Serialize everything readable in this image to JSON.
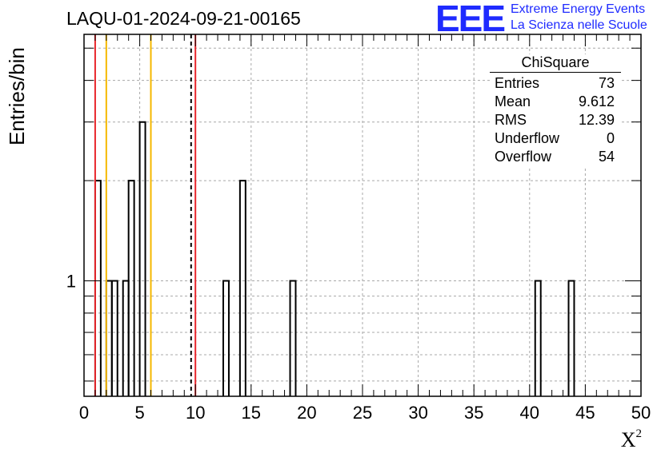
{
  "chart_data": {
    "type": "histogram",
    "title": "LAQU-01-2024-09-21-00165",
    "xlabel": "X",
    "xlabel_sup": "2",
    "ylabel": "Entries/bin",
    "xlim": [
      0,
      50
    ],
    "ylim": [
      0.45,
      5.5
    ],
    "y_scale": "log",
    "grid": true,
    "bin_width": 0.5,
    "x_ticks": [
      "0",
      "5",
      "10",
      "15",
      "20",
      "25",
      "30",
      "35",
      "40",
      "45",
      "50"
    ],
    "y_tick_label": "1",
    "bins": [
      {
        "x": 1.0,
        "value": 2
      },
      {
        "x": 2.0,
        "value": 1
      },
      {
        "x": 2.5,
        "value": 1
      },
      {
        "x": 3.5,
        "value": 1
      },
      {
        "x": 4.0,
        "value": 2
      },
      {
        "x": 5.0,
        "value": 3
      },
      {
        "x": 12.5,
        "value": 1
      },
      {
        "x": 14.0,
        "value": 2
      },
      {
        "x": 18.5,
        "value": 1
      },
      {
        "x": 40.5,
        "value": 1
      },
      {
        "x": 43.5,
        "value": 1
      }
    ],
    "reference_lines": [
      {
        "x": 1.0,
        "color": "#e8262c",
        "style": "solid"
      },
      {
        "x": 2.0,
        "color": "#f5b800",
        "style": "solid"
      },
      {
        "x": 6.0,
        "color": "#f5b800",
        "style": "solid"
      },
      {
        "x": 9.612,
        "color": "#000000",
        "style": "dashed"
      },
      {
        "x": 10.0,
        "color": "#e8262c",
        "style": "solid"
      }
    ],
    "stats_box": {
      "title": "ChiSquare",
      "rows": [
        {
          "label": "Entries",
          "value": "73"
        },
        {
          "label": "Mean",
          "value": "9.612"
        },
        {
          "label": "RMS",
          "value": "12.39"
        },
        {
          "label": "Underflow",
          "value": "0"
        },
        {
          "label": "Overflow",
          "value": "54"
        }
      ]
    }
  },
  "logo": {
    "mark": "EEE",
    "line1": "Extreme Energy Events",
    "line2": "La Scienza nelle Scuole",
    "color": "#1f2bff"
  }
}
